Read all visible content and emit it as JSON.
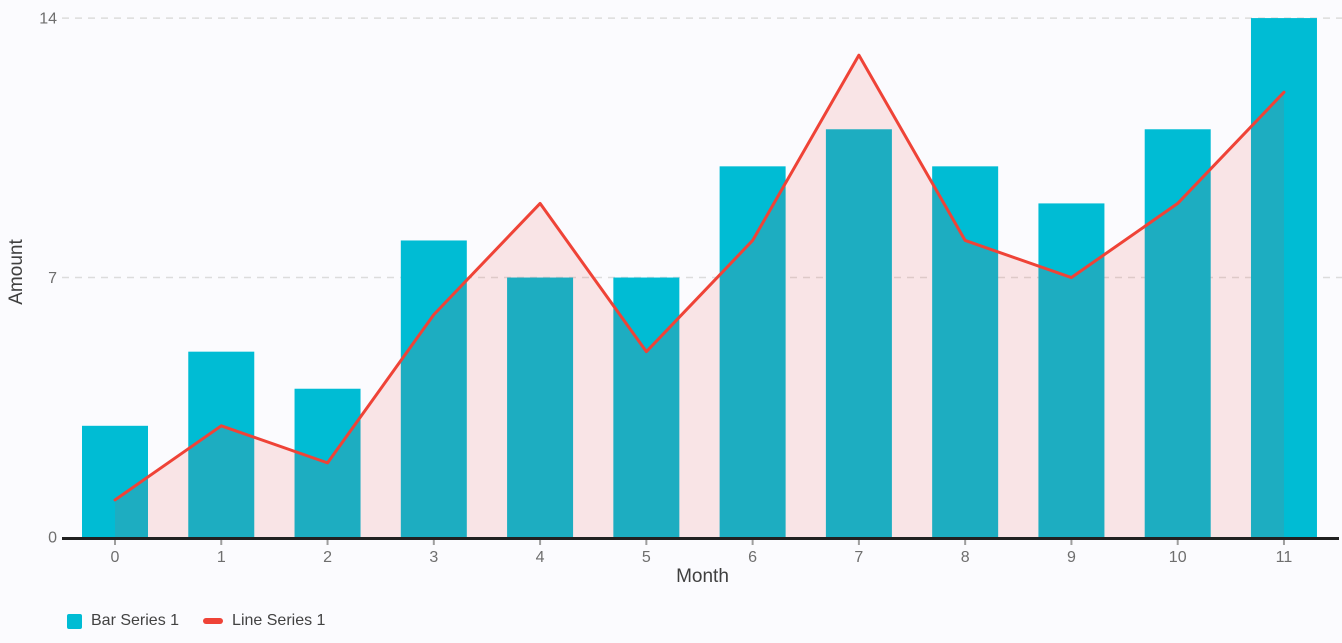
{
  "chart_data": {
    "type": "bar+line",
    "title": "",
    "xlabel": "Month",
    "ylabel": "Amount",
    "categories": [
      "0",
      "1",
      "2",
      "3",
      "4",
      "5",
      "6",
      "7",
      "8",
      "9",
      "10",
      "11"
    ],
    "series": [
      {
        "name": "Bar Series 1",
        "type": "bar",
        "color": "#00BCD4",
        "values": [
          3,
          5,
          4,
          8,
          7,
          7,
          10,
          11,
          10,
          9,
          11,
          14
        ]
      },
      {
        "name": "Line Series 1",
        "type": "line",
        "color": "#EF4337",
        "area_fill": "rgba(239,67,55,0.12)",
        "values": [
          1,
          3,
          2,
          6,
          9,
          5,
          8,
          13,
          8,
          7,
          9,
          12
        ]
      }
    ],
    "yticks": [
      0,
      7,
      14
    ],
    "ylim": [
      0,
      14
    ],
    "grid": "dashed horizontal gridlines at 7 and 14",
    "grid_color": "#dcdcdc",
    "axis_color": "#212121",
    "tick_color": "#9e9e9e",
    "background_color": "#fbfbfe",
    "legend_position": "bottom-left"
  }
}
